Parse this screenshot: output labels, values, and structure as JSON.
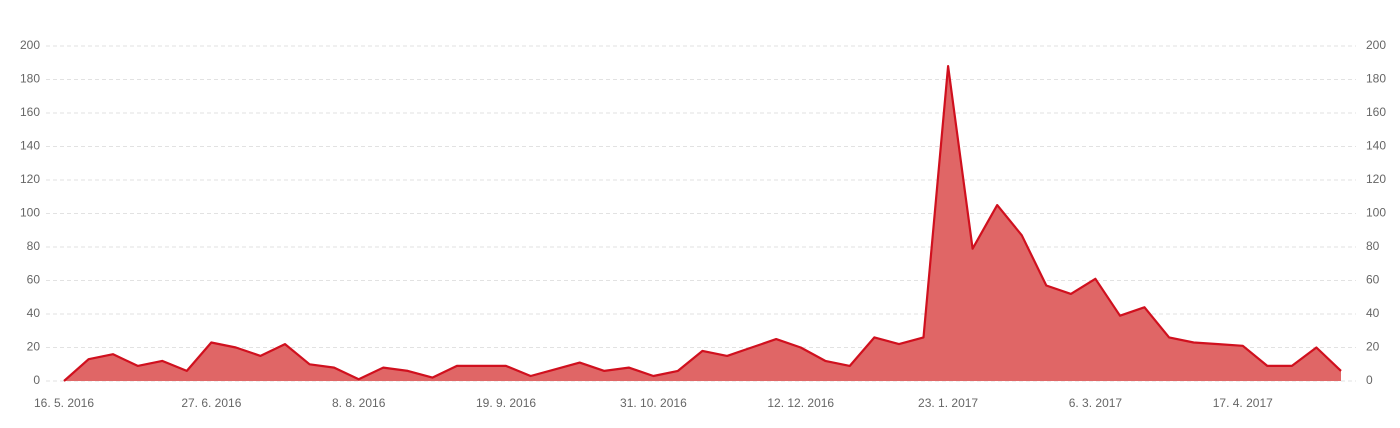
{
  "chart_data": {
    "type": "area",
    "categories": [
      "16. 5. 2016",
      null,
      null,
      null,
      null,
      null,
      "27. 6. 2016",
      null,
      null,
      null,
      null,
      null,
      "8. 8. 2016",
      null,
      null,
      null,
      null,
      null,
      "19. 9. 2016",
      null,
      null,
      null,
      null,
      null,
      "31. 10. 2016",
      null,
      null,
      null,
      null,
      null,
      "12. 12. 2016",
      null,
      null,
      null,
      null,
      null,
      "23. 1. 2017",
      null,
      null,
      null,
      null,
      null,
      "6. 3. 2017",
      null,
      null,
      null,
      null,
      null,
      "17. 4. 2017",
      null,
      null,
      null,
      null
    ],
    "values": [
      0,
      13,
      16,
      9,
      12,
      6,
      23,
      20,
      15,
      22,
      10,
      8,
      1,
      8,
      6,
      2,
      9,
      9,
      9,
      3,
      7,
      11,
      6,
      8,
      3,
      6,
      18,
      15,
      20,
      25,
      20,
      12,
      9,
      26,
      22,
      26,
      188,
      79,
      105,
      87,
      57,
      52,
      61,
      39,
      44,
      26,
      23,
      22,
      21,
      9,
      9,
      20,
      6
    ],
    "color": "#d0101e",
    "fill": "#e06666",
    "ylim": [
      0,
      200
    ],
    "yticks": [
      0,
      20,
      40,
      60,
      80,
      100,
      120,
      140,
      160,
      180,
      200
    ],
    "y2lim": [
      0,
      200
    ],
    "y2ticks": [
      0,
      20,
      40,
      60,
      80,
      100,
      120,
      140,
      160,
      180,
      200
    ],
    "grid": true
  }
}
